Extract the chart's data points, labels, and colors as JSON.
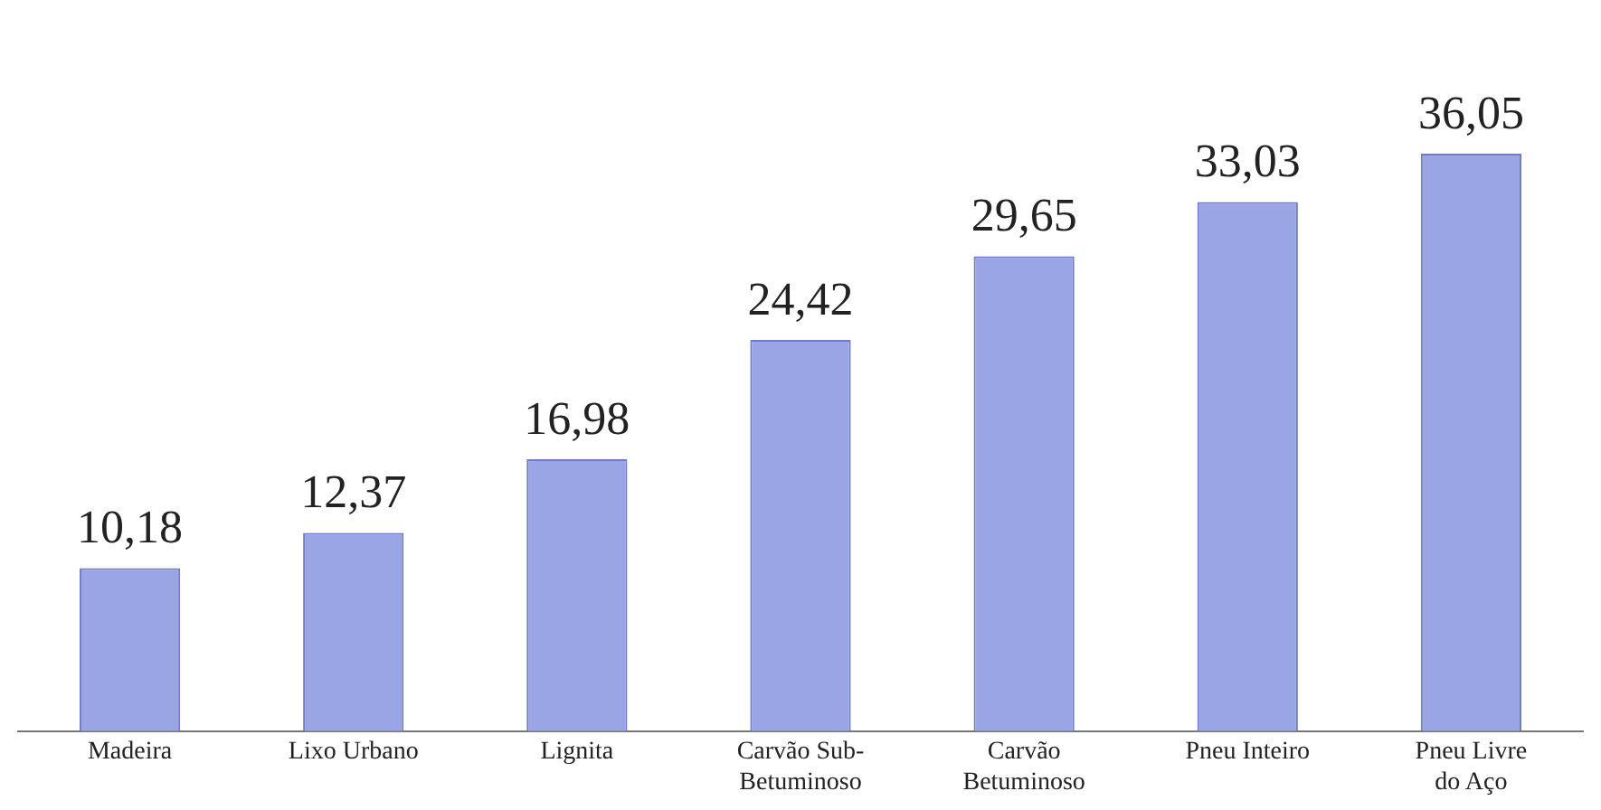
{
  "chart_data": {
    "type": "bar",
    "categories": [
      "Madeira",
      "Lixo Urbano",
      "Lignita",
      "Carvão Sub-Betuminoso",
      "Carvão Betuminoso",
      "Pneu Inteiro",
      "Pneu Livre do Aço"
    ],
    "values": [
      10.18,
      12.37,
      16.98,
      24.42,
      29.65,
      33.03,
      36.05
    ],
    "value_labels": [
      "10,18",
      "12,37",
      "16,98",
      "24,42",
      "29,65",
      "33,03",
      "36,05"
    ],
    "color": "#9aa5e6",
    "tick_labels": "x",
    "grid": false,
    "legend": false
  }
}
